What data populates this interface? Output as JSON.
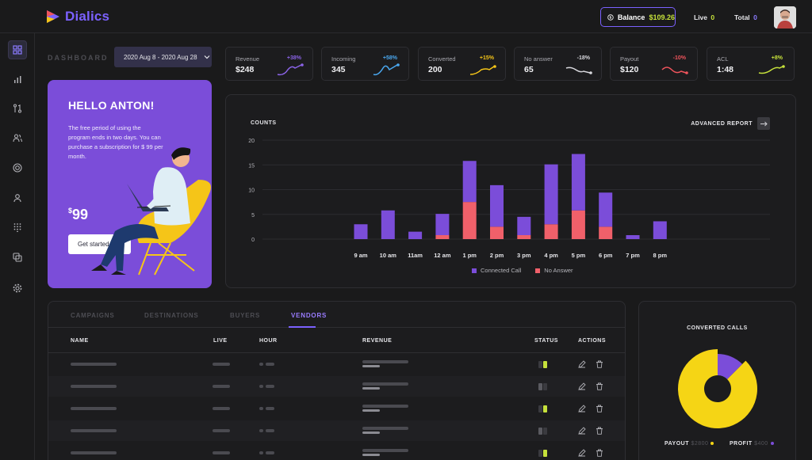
{
  "app": {
    "name": "Dialics",
    "brand_color": "#7b61ff",
    "accent_color": "#c6e13b"
  },
  "header": {
    "balance_label": "Balance",
    "balance_value": "$109.26",
    "live_label": "Live",
    "live_value": "0",
    "total_label": "Total",
    "total_value": "0"
  },
  "sidebar": {
    "items": [
      {
        "icon": "menu-icon"
      },
      {
        "icon": "dashboard-icon",
        "active": true
      },
      {
        "icon": "bar-chart-icon"
      },
      {
        "icon": "routing-icon"
      },
      {
        "icon": "users-icon"
      },
      {
        "icon": "target-icon"
      },
      {
        "icon": "user-icon"
      },
      {
        "icon": "dialpad-icon"
      },
      {
        "icon": "copy-icon"
      },
      {
        "icon": "gear-icon"
      }
    ]
  },
  "dashboard": {
    "label": "DASHBOARD",
    "date_range": "2020 Aug 8 - 2020 Aug 28"
  },
  "kpis": [
    {
      "label": "Revenue",
      "value": "$248",
      "change": "+38%",
      "color": "#8b63e8"
    },
    {
      "label": "Incoming",
      "value": "345",
      "change": "+58%",
      "color": "#4aa8f0"
    },
    {
      "label": "Converted",
      "value": "200",
      "change": "+15%",
      "color": "#f5c518"
    },
    {
      "label": "No answer",
      "value": "65",
      "change": "-18%",
      "color": "#d9d9de"
    },
    {
      "label": "Payout",
      "value": "$120",
      "change": "-10%",
      "color": "#f0545c"
    },
    {
      "label": "ACL",
      "value": "1:48",
      "change": "+8%",
      "color": "#c6e13b"
    }
  ],
  "promo": {
    "title": "HELLO ANTON!",
    "text": "The free period of using the program ends in two days. You can purchase a subscription for $ 99 per month.",
    "currency": "$",
    "price": "99",
    "button": "Get started"
  },
  "chart_data": {
    "type": "bar",
    "stacked": true,
    "title": "COUNTS",
    "categories": [
      "9 am",
      "10 am",
      "11am",
      "12 am",
      "1 pm",
      "2 pm",
      "3 pm",
      "4 pm",
      "5 pm",
      "6 pm",
      "7 pm",
      "8 pm"
    ],
    "series": [
      {
        "name": "Connected Call",
        "color": "#7b4dd9",
        "values": [
          3,
          5.8,
          1.5,
          4.3,
          8.3,
          8.4,
          3.7,
          12.1,
          11.4,
          6.9,
          0.8,
          3.6
        ]
      },
      {
        "name": "No Answer",
        "color": "#f0606a",
        "values": [
          0,
          0,
          0,
          0.8,
          7.5,
          2.5,
          0.8,
          3,
          5.8,
          2.5,
          0,
          0
        ]
      }
    ],
    "yticks": [
      0,
      5,
      10,
      15,
      20
    ],
    "ylim": [
      0,
      20
    ],
    "grid": true,
    "legend": "bottom"
  },
  "chart_link": "ADVANCED REPORT",
  "table": {
    "tabs": [
      {
        "label": "CAMPAIGNS",
        "active": false
      },
      {
        "label": "DESTINATIONS",
        "active": false
      },
      {
        "label": "BUYERS",
        "active": false
      },
      {
        "label": "VENDORS",
        "active": true
      }
    ],
    "columns": {
      "name": "NAME",
      "live": "LIVE",
      "hour": "HOUR",
      "revenue": "REVENUE",
      "status": "STATUS",
      "actions": "ACTIONS"
    },
    "rows": [
      {
        "status": "on"
      },
      {
        "status": "off"
      },
      {
        "status": "on"
      },
      {
        "status": "off"
      },
      {
        "status": "on"
      }
    ]
  },
  "pie": {
    "title": "CONVERTED CALLS",
    "chart_data": {
      "type": "pie",
      "labels": [
        "PAYOUT",
        "PROFIT"
      ],
      "values": [
        2800,
        400
      ],
      "colors": [
        "#f5d515",
        "#7b4dd9"
      ]
    },
    "payout_label": "PAYOUT",
    "payout_value": "$2800",
    "profit_label": "PROFIT",
    "profit_value": "$400"
  }
}
